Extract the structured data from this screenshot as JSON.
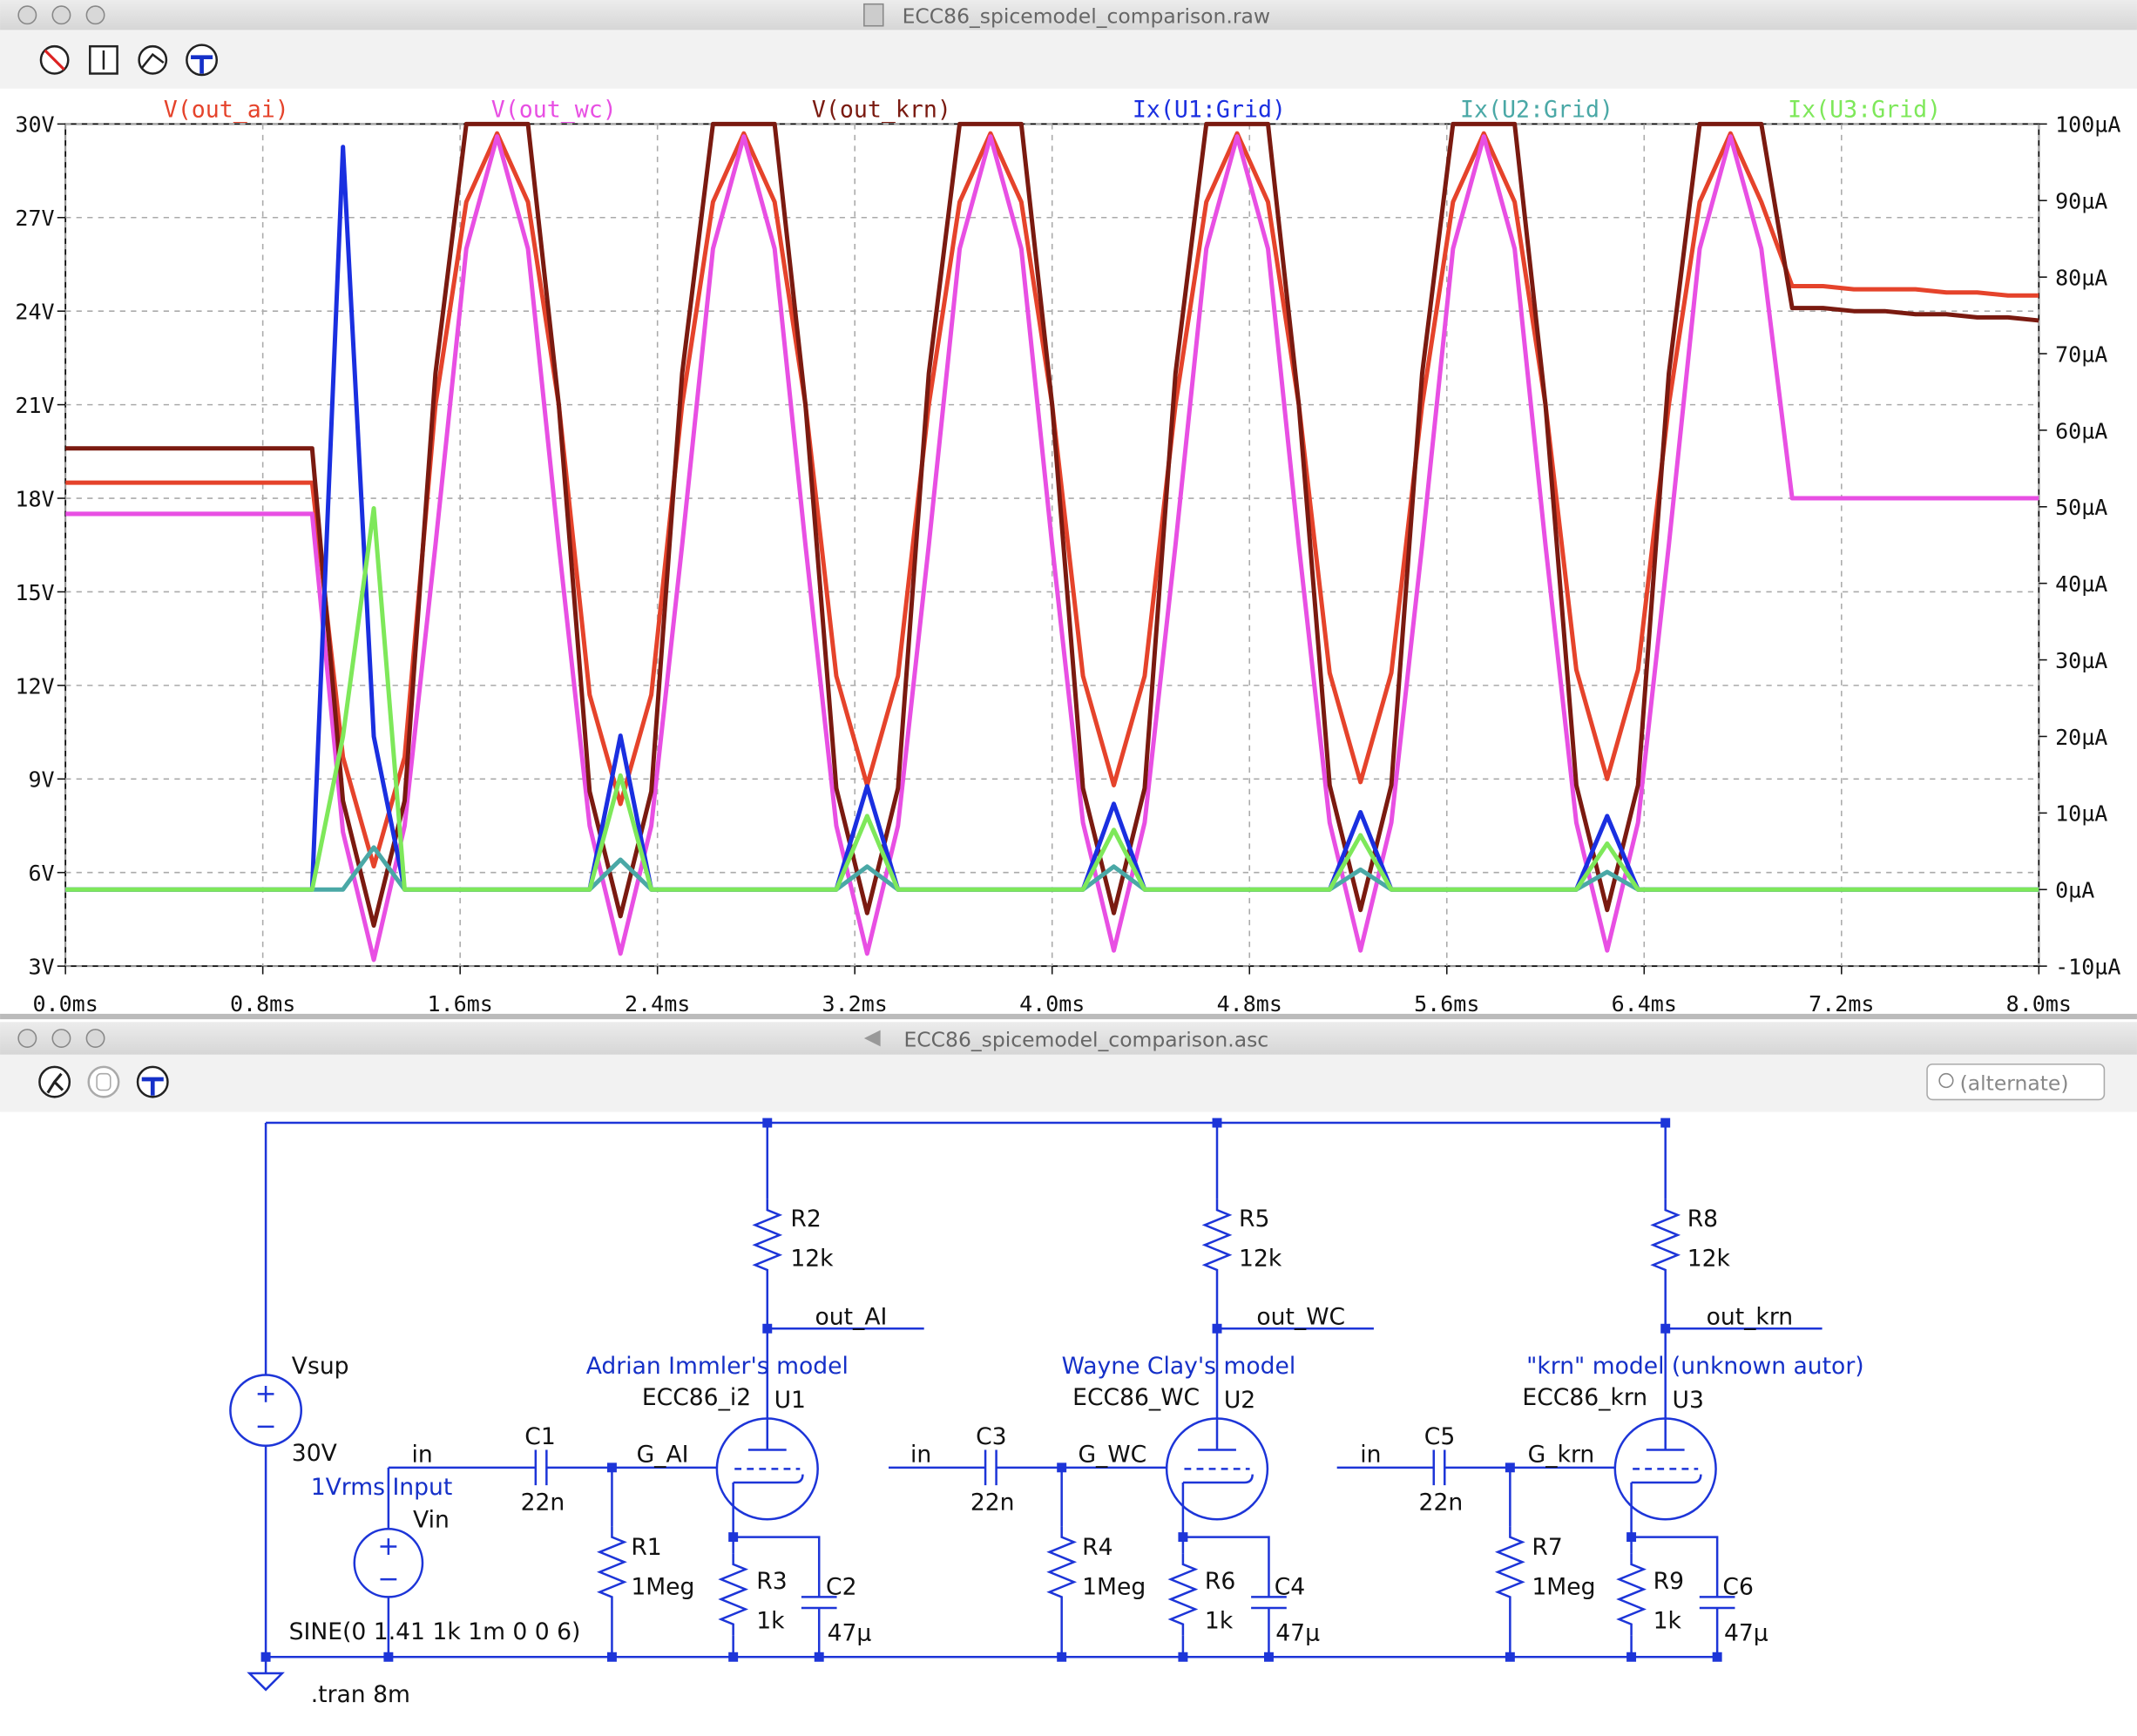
{
  "windows": [
    {
      "title": "ECC86_spicemodel_comparison.raw"
    },
    {
      "title": "ECC86_spicemodel_comparison.asc"
    }
  ],
  "chart_data": {
    "type": "line",
    "x": [
      0,
      0.125,
      0.25,
      0.375,
      0.5,
      0.625,
      0.75,
      0.875,
      1,
      1.125,
      1.25,
      1.375,
      1.5,
      1.625,
      1.75,
      1.875,
      2,
      2.125,
      2.25,
      2.375,
      2.5,
      2.625,
      2.75,
      2.875,
      3,
      3.125,
      3.25,
      3.375,
      3.5,
      3.625,
      3.75,
      3.875,
      4,
      4.125,
      4.25,
      4.375,
      4.5,
      4.625,
      4.75,
      4.875,
      5,
      5.125,
      5.25,
      5.375,
      5.5,
      5.625,
      5.75,
      5.875,
      6,
      6.125,
      6.25,
      6.375,
      6.5,
      6.625,
      6.75,
      6.875,
      7,
      7.125,
      7.25,
      7.375,
      7.5,
      7.625,
      7.75,
      7.875,
      8
    ],
    "series": [
      {
        "name": "V(out_ai)",
        "color": "#e5432b",
        "values": [
          18.5,
          18.5,
          18.5,
          18.5,
          18.5,
          18.5,
          18.5,
          18.5,
          18.5,
          9.7,
          6.2,
          9.7,
          21,
          27.5,
          29.7,
          27.5,
          21,
          11.7,
          8.2,
          11.7,
          21,
          27.5,
          29.7,
          27.5,
          21,
          12.3,
          8.8,
          12.3,
          21,
          27.5,
          29.7,
          27.5,
          21,
          12.3,
          8.8,
          12.3,
          21,
          27.5,
          29.7,
          27.5,
          21,
          12.4,
          8.9,
          12.4,
          21,
          27.5,
          29.7,
          27.5,
          21,
          12.5,
          9.0,
          12.5,
          21,
          27.5,
          29.7,
          27.5,
          24.8,
          24.8,
          24.7,
          24.7,
          24.7,
          24.6,
          24.6,
          24.5,
          24.5
        ]
      },
      {
        "name": "V(out_wc)",
        "color": "#e84fe3",
        "values": [
          17.5,
          17.5,
          17.5,
          17.5,
          17.5,
          17.5,
          17.5,
          17.5,
          17.5,
          7.3,
          3.2,
          7.5,
          16.5,
          26,
          29.6,
          26,
          16.5,
          7.5,
          3.4,
          7.5,
          16.5,
          26,
          29.6,
          26,
          16.5,
          7.5,
          3.4,
          7.5,
          16.5,
          26,
          29.6,
          26,
          16.5,
          7.6,
          3.5,
          7.6,
          16.5,
          26,
          29.6,
          26,
          16.5,
          7.6,
          3.5,
          7.6,
          16.5,
          26,
          29.6,
          26,
          16.5,
          7.6,
          3.5,
          7.6,
          16.5,
          26,
          29.6,
          26,
          18,
          18,
          18,
          18,
          18,
          18,
          18,
          18,
          18
        ]
      },
      {
        "name": "V(out_krn)",
        "color": "#7a1a10",
        "values": [
          19.6,
          19.6,
          19.6,
          19.6,
          19.6,
          19.6,
          19.6,
          19.6,
          19.6,
          8.3,
          4.3,
          8.3,
          22,
          30,
          30,
          30,
          21,
          8.6,
          4.6,
          8.6,
          22,
          30,
          30,
          30,
          21,
          8.7,
          4.7,
          8.7,
          22,
          30,
          30,
          30,
          21,
          8.7,
          4.7,
          8.7,
          22,
          30,
          30,
          30,
          21,
          8.8,
          4.8,
          8.8,
          22,
          30,
          30,
          30,
          21,
          8.8,
          4.8,
          8.8,
          22,
          30,
          30,
          30,
          24.1,
          24.1,
          24.0,
          24.0,
          23.9,
          23.9,
          23.8,
          23.8,
          23.7
        ]
      },
      {
        "name": "Ix(U1:Grid)",
        "color": "#1a2fe0",
        "axis": "y2",
        "values": [
          0,
          0,
          0,
          0,
          0,
          0,
          0,
          0,
          0,
          97,
          20,
          0,
          0,
          0,
          0,
          0,
          0,
          0,
          20.1,
          0,
          0,
          0,
          0,
          0,
          0,
          0,
          13.5,
          0,
          0,
          0,
          0,
          0,
          0,
          0,
          11.2,
          0,
          0,
          0,
          0,
          0,
          0,
          0,
          10.1,
          0,
          0,
          0,
          0,
          0,
          0,
          0,
          9.6,
          0,
          0,
          0,
          0,
          0,
          0,
          0,
          0,
          0,
          0,
          0,
          0,
          0,
          0
        ]
      },
      {
        "name": "Ix(U2:Grid)",
        "color": "#4aa8a6",
        "axis": "y2",
        "values": [
          0,
          0,
          0,
          0,
          0,
          0,
          0,
          0,
          0,
          0,
          5.5,
          0,
          0,
          0,
          0,
          0,
          0,
          0,
          3.9,
          0,
          0,
          0,
          0,
          0,
          0,
          0,
          3.0,
          0,
          0,
          0,
          0,
          0,
          0,
          0,
          3.0,
          0,
          0,
          0,
          0,
          0,
          0,
          0,
          2.6,
          0,
          0,
          0,
          0,
          0,
          0,
          0,
          2.3,
          0,
          0,
          0,
          0,
          0,
          0,
          0,
          0,
          0,
          0,
          0,
          0,
          0,
          0
        ]
      },
      {
        "name": "Ix(U3:Grid)",
        "color": "#7ee85a",
        "axis": "y2",
        "values": [
          0,
          0,
          0,
          0,
          0,
          0,
          0,
          0,
          0,
          20,
          49.8,
          0,
          0,
          0,
          0,
          0,
          0,
          0,
          14.9,
          0,
          0,
          0,
          0,
          0,
          0,
          0,
          9.6,
          0,
          0,
          0,
          0,
          0,
          0,
          0,
          7.8,
          0,
          0,
          0,
          0,
          0,
          0,
          0,
          7.1,
          0,
          0,
          0,
          0,
          0,
          0,
          0,
          6.0,
          0,
          0,
          0,
          0,
          0,
          0,
          0,
          0,
          0,
          0,
          0,
          0,
          0,
          0
        ]
      }
    ],
    "xlim": [
      0,
      8
    ],
    "xticks": [
      {
        "value": 0,
        "label": "0.0ms"
      },
      {
        "value": 0.8,
        "label": "0.8ms"
      },
      {
        "value": 1.6,
        "label": "1.6ms"
      },
      {
        "value": 2.4,
        "label": "2.4ms"
      },
      {
        "value": 3.2,
        "label": "3.2ms"
      },
      {
        "value": 4,
        "label": "4.0ms"
      },
      {
        "value": 4.8,
        "label": "4.8ms"
      },
      {
        "value": 5.6,
        "label": "5.6ms"
      },
      {
        "value": 6.4,
        "label": "6.4ms"
      },
      {
        "value": 7.2,
        "label": "7.2ms"
      },
      {
        "value": 8,
        "label": "8.0ms"
      }
    ],
    "ylim": [
      3,
      30
    ],
    "yticks": [
      {
        "value": 3,
        "label": "3V"
      },
      {
        "value": 6,
        "label": "6V"
      },
      {
        "value": 9,
        "label": "9V"
      },
      {
        "value": 12,
        "label": "12V"
      },
      {
        "value": 15,
        "label": "15V"
      },
      {
        "value": 18,
        "label": "18V"
      },
      {
        "value": 21,
        "label": "21V"
      },
      {
        "value": 24,
        "label": "24V"
      },
      {
        "value": 27,
        "label": "27V"
      },
      {
        "value": 30,
        "label": "30V"
      }
    ],
    "y2lim": [
      -10,
      100
    ],
    "y2ticks": [
      {
        "value": -10,
        "label": "-10µA"
      },
      {
        "value": 0,
        "label": "0µA"
      },
      {
        "value": 10,
        "label": "10µA"
      },
      {
        "value": 20,
        "label": "20µA"
      },
      {
        "value": 30,
        "label": "30µA"
      },
      {
        "value": 40,
        "label": "40µA"
      },
      {
        "value": 50,
        "label": "50µA"
      },
      {
        "value": 60,
        "label": "60µA"
      },
      {
        "value": 70,
        "label": "70µA"
      },
      {
        "value": 80,
        "label": "80µA"
      },
      {
        "value": 90,
        "label": "90µA"
      },
      {
        "value": 100,
        "label": "100µA"
      }
    ],
    "grid": true
  },
  "schematic": {
    "search_placeholder": "(alternate)",
    "labels": [
      "Vsup",
      "30V",
      "in",
      "1Vrms Input",
      "Vin",
      "SINE(0 1.41 1k 1m 0 0 6)",
      ".tran 8m",
      "C1",
      "22n",
      "G_AI",
      "R1",
      "1Meg",
      "Adrian Immler's model",
      "ECC86_i2",
      "U1",
      "R2",
      "12k",
      "out_AI",
      "R3",
      "1k",
      "C2",
      "47µ",
      "in",
      "C3",
      "22n",
      "G_WC",
      "R4",
      "1Meg",
      "Wayne Clay's model",
      "ECC86_WC",
      "U2",
      "R5",
      "12k",
      "out_WC",
      "R6",
      "1k",
      "C4",
      "47µ",
      "in",
      "C5",
      "22n",
      "G_krn",
      "R7",
      "1Meg",
      "\"krn\" model (unknown autor)",
      "ECC86_krn",
      "U3",
      "R8",
      "12k",
      "out_krn",
      "R9",
      "1k",
      "C6",
      "47µ"
    ]
  }
}
